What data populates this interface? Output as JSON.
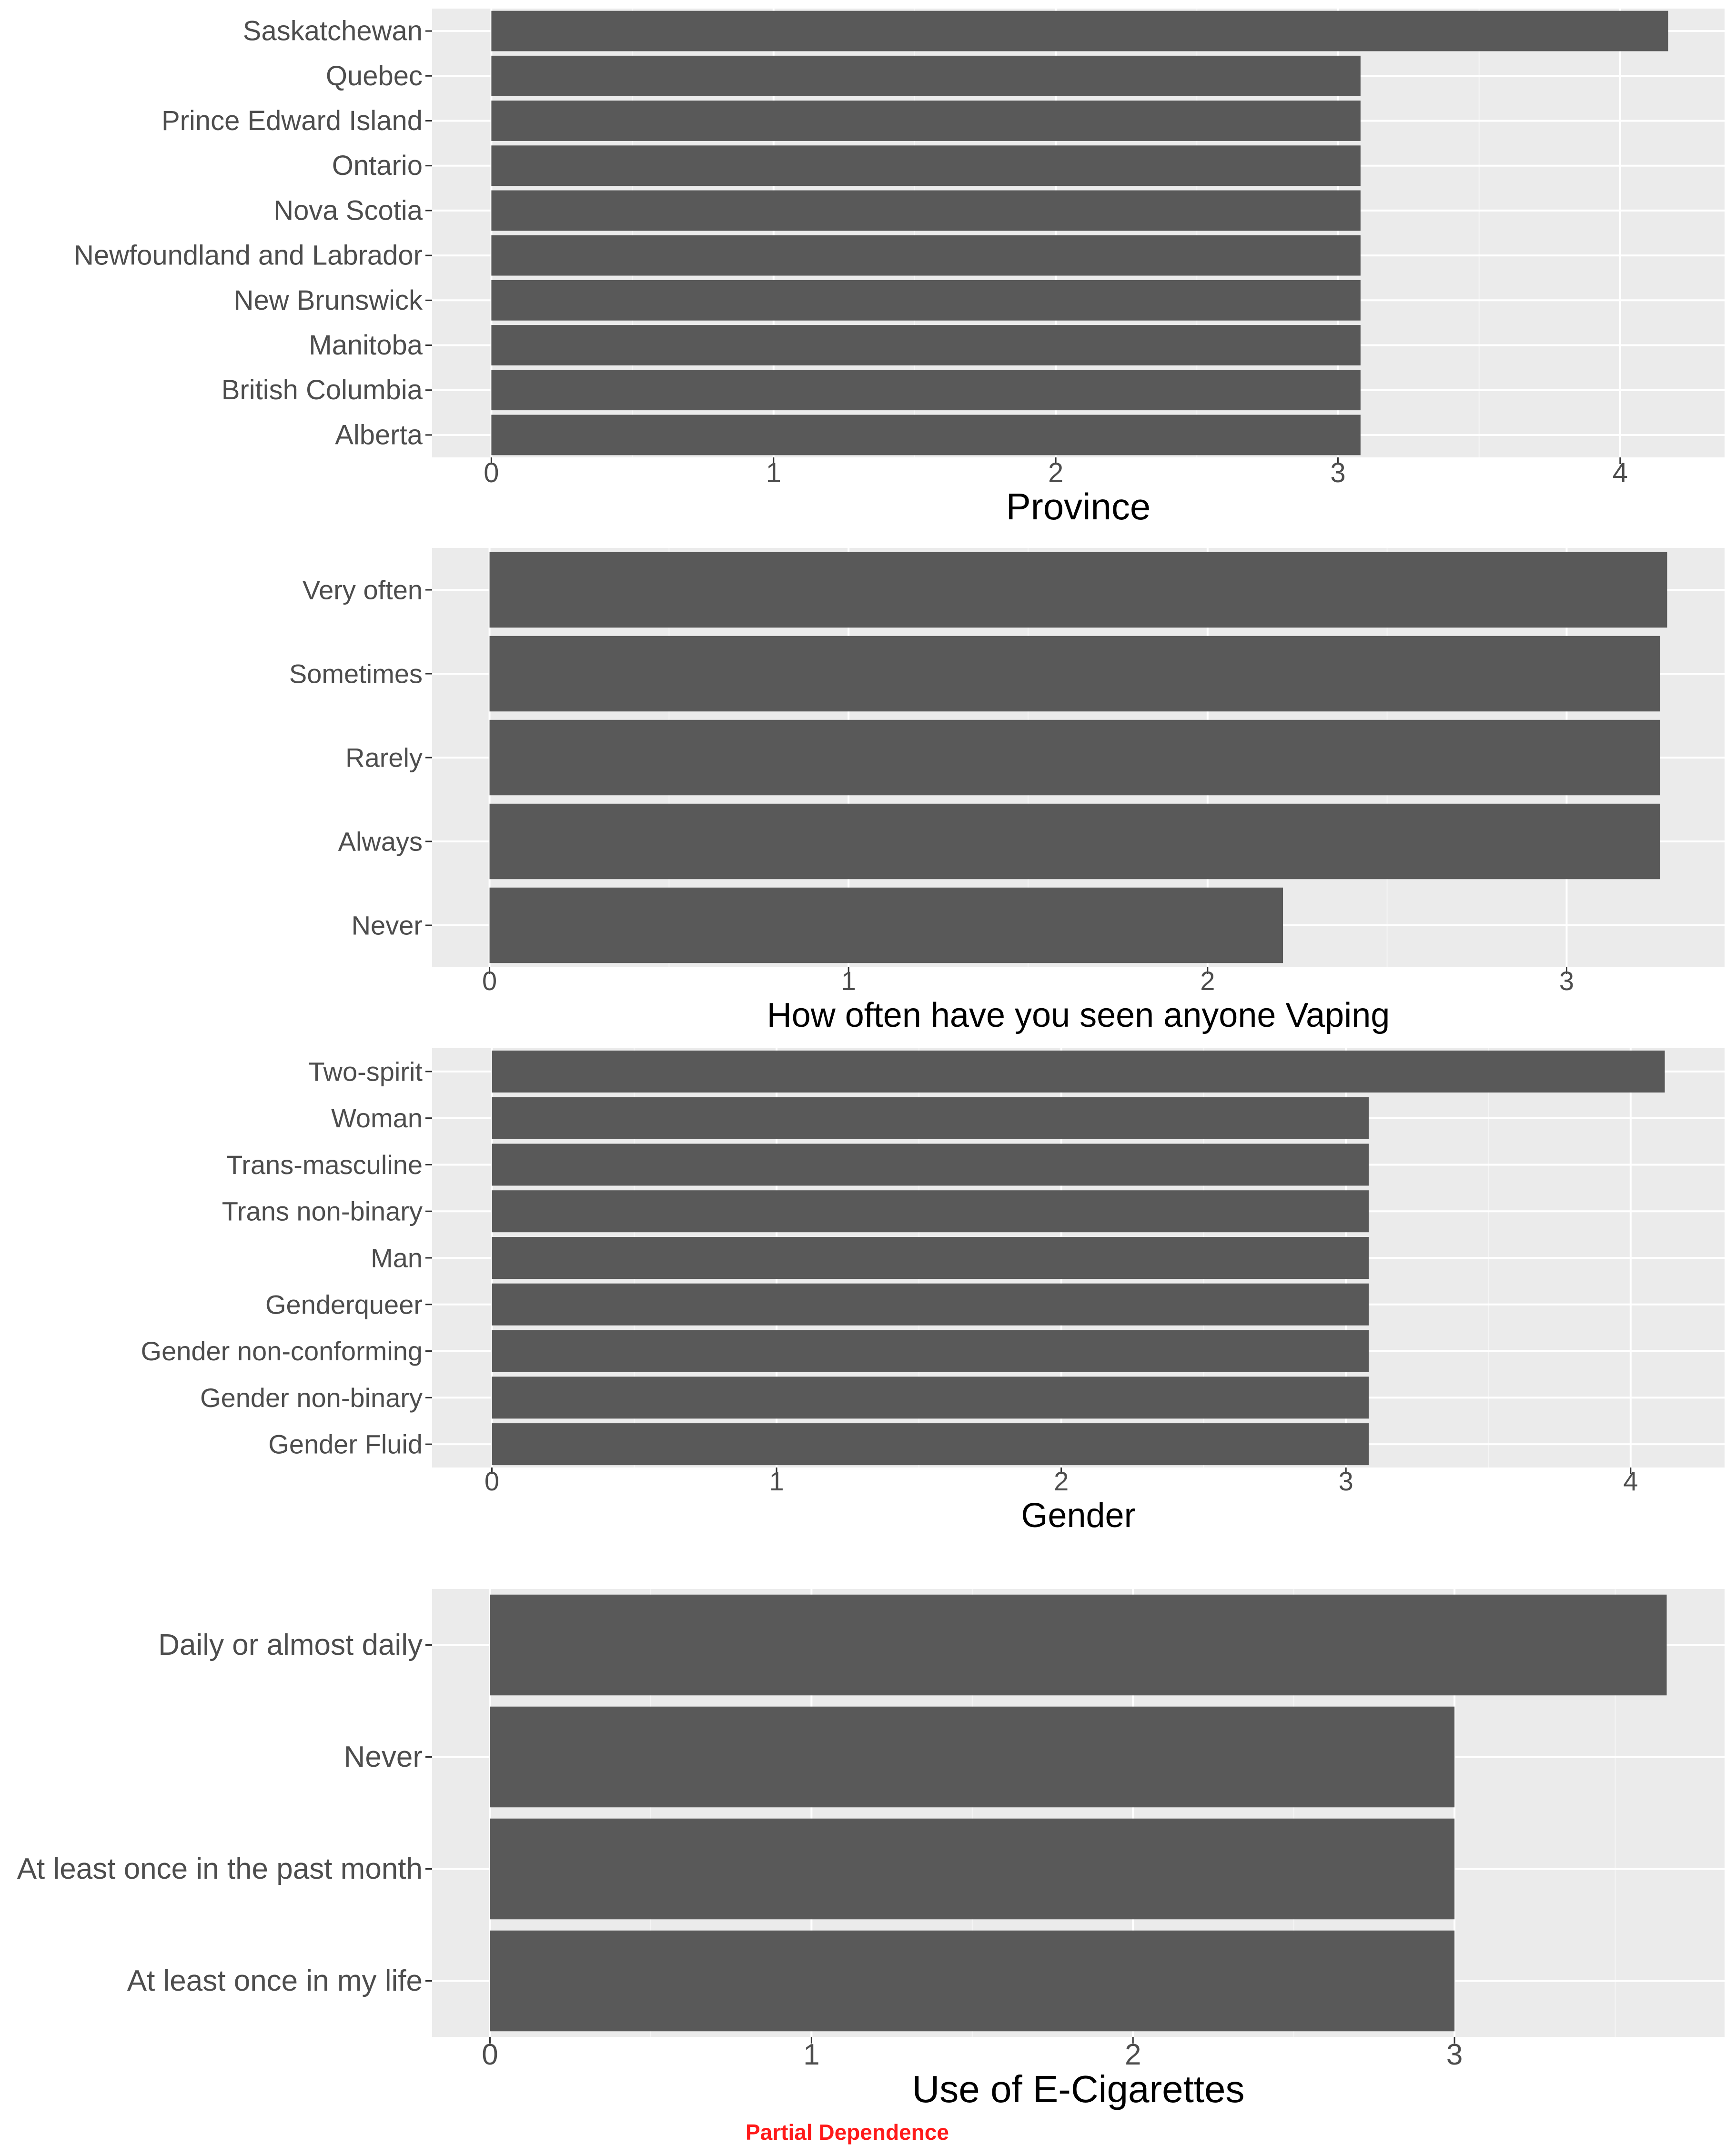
{
  "colors": {
    "panel": "#ebebeb",
    "grid_major": "#ffffff",
    "grid_minor": "#f5f5f5",
    "bar": "#595959",
    "text": "#4d4d4d",
    "footer": "#ff1a1a"
  },
  "footer_label": "Partial Dependence",
  "chart_data": [
    {
      "type": "bar",
      "orientation": "horizontal",
      "xlabel": "Province",
      "categories": [
        "Saskatchewan",
        "Quebec",
        "Prince Edward Island",
        "Ontario",
        "Nova Scotia",
        "Newfoundland and Labrador",
        "New Brunswick",
        "Manitoba",
        "British Columbia",
        "Alberta"
      ],
      "values": [
        4.17,
        3.08,
        3.08,
        3.08,
        3.08,
        3.08,
        3.08,
        3.08,
        3.08,
        3.08
      ],
      "xlim": [
        -0.21,
        4.37
      ],
      "xticks": [
        0,
        1,
        2,
        3,
        4
      ]
    },
    {
      "type": "bar",
      "orientation": "horizontal",
      "xlabel": "How often have you seen anyone Vaping",
      "categories": [
        "Very often",
        "Sometimes",
        "Rarely",
        "Always",
        "Never"
      ],
      "values": [
        3.28,
        3.26,
        3.26,
        3.26,
        2.21
      ],
      "xlim": [
        -0.16,
        3.44
      ],
      "xticks": [
        0,
        1,
        2,
        3
      ]
    },
    {
      "type": "bar",
      "orientation": "horizontal",
      "xlabel": "Gender",
      "categories": [
        "Two-spirit",
        "Woman",
        "Trans-masculine",
        "Trans non-binary",
        "Man",
        "Genderqueer",
        "Gender non-conforming",
        "Gender non-binary",
        "Gender Fluid"
      ],
      "values": [
        4.12,
        3.08,
        3.08,
        3.08,
        3.08,
        3.08,
        3.08,
        3.08,
        3.08
      ],
      "xlim": [
        -0.21,
        4.33
      ],
      "xticks": [
        0,
        1,
        2,
        3,
        4
      ]
    },
    {
      "type": "bar",
      "orientation": "horizontal",
      "xlabel": "Use of E-Cigarettes",
      "categories": [
        "Daily or almost daily",
        "Never",
        "At least once in the past month",
        "At least once in my life"
      ],
      "values": [
        3.66,
        3.0,
        3.0,
        3.0
      ],
      "xlim": [
        -0.18,
        3.84
      ],
      "xticks": [
        0,
        1,
        2,
        3
      ]
    }
  ]
}
